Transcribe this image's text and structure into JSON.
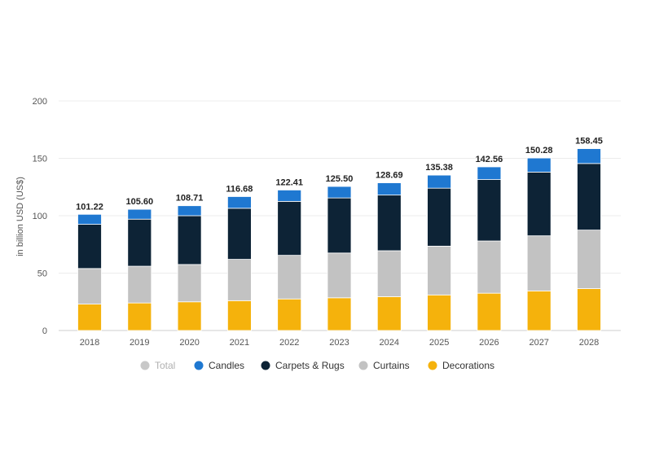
{
  "chart_data": {
    "type": "bar",
    "stacked": true,
    "ylabel": "in billion USD (US$)",
    "ylim": [
      0,
      200
    ],
    "yticks": [
      "0",
      "50",
      "100",
      "150",
      "200"
    ],
    "grid": true,
    "legend_position": "bottom-center",
    "categories": [
      "2018",
      "2019",
      "2020",
      "2021",
      "2022",
      "2023",
      "2024",
      "2025",
      "2026",
      "2027",
      "2028"
    ],
    "totals": [
      "101.22",
      "105.60",
      "108.71",
      "116.68",
      "122.41",
      "125.50",
      "128.69",
      "135.38",
      "142.56",
      "150.28",
      "158.45"
    ],
    "legend": [
      {
        "name": "Total",
        "color": "#c8c8c8",
        "muted": true
      },
      {
        "name": "Candles",
        "color": "#1f78d1",
        "muted": false
      },
      {
        "name": "Carpets & Rugs",
        "color": "#0d2336",
        "muted": false
      },
      {
        "name": "Curtains",
        "color": "#c2c2c2",
        "muted": false
      },
      {
        "name": "Decorations",
        "color": "#f5b20c",
        "muted": false
      }
    ],
    "series": [
      {
        "name": "Decorations",
        "color": "#f5b20c",
        "values": [
          23,
          24,
          25,
          26,
          27.5,
          28.5,
          29.5,
          31,
          32.5,
          34.5,
          36.5
        ]
      },
      {
        "name": "Curtains",
        "color": "#c2c2c2",
        "values": [
          31,
          32,
          32.5,
          36,
          38,
          39,
          40,
          42.5,
          45.5,
          48,
          51
        ]
      },
      {
        "name": "Carpets & Rugs",
        "color": "#0d2336",
        "values": [
          38.5,
          41,
          42.5,
          44.5,
          47,
          48,
          48.5,
          50.5,
          53.5,
          55.5,
          58
        ]
      },
      {
        "name": "Candles",
        "color": "#1f78d1",
        "values": [
          8.72,
          8.6,
          8.71,
          10.18,
          9.91,
          10,
          10.69,
          11.38,
          11.06,
          12.28,
          12.95
        ]
      }
    ]
  }
}
